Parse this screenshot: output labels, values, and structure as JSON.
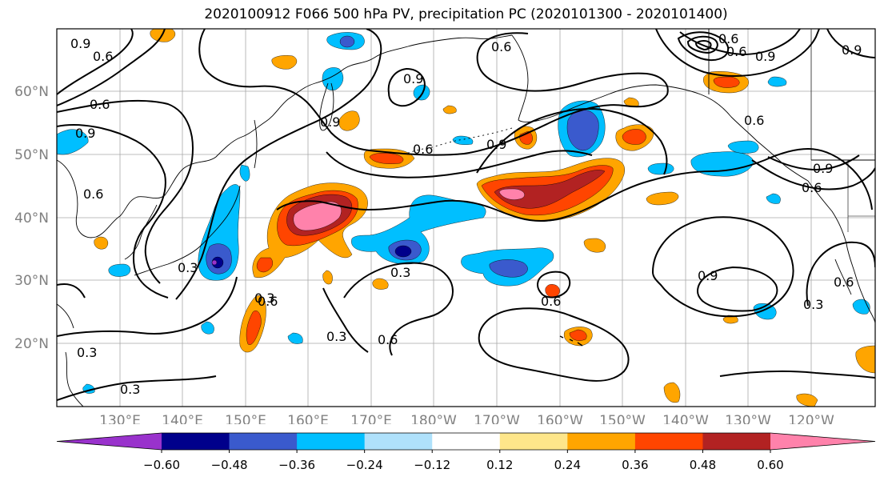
{
  "title": "2020100912 F066 500 hPa PV, precipitation PC (2020101300 - 2020101400)",
  "lat_labels": [
    "60°N",
    "50°N",
    "40°N",
    "30°N",
    "20°N"
  ],
  "lon_labels": [
    "130°E",
    "140°E",
    "150°E",
    "160°E",
    "170°E",
    "180°W",
    "170°W",
    "160°W",
    "150°W",
    "140°W",
    "130°W",
    "120°W"
  ],
  "colorbar": {
    "ticks": [
      "−0.60",
      "−0.48",
      "−0.36",
      "−0.24",
      "−0.12",
      "0.12",
      "0.24",
      "0.36",
      "0.48",
      "0.60"
    ],
    "colors": [
      "#9932cc",
      "#00008b",
      "#3a5acd",
      "#00bfff",
      "#afe1fb",
      "#ffffff",
      "#fee68a",
      "#ffa500",
      "#ff4500",
      "#b22222",
      "#ff82ab"
    ]
  },
  "contour_labels": [
    "0.9",
    "0.6",
    "0.6",
    "0.9",
    "0.6",
    "0.3",
    "0.6",
    "0.3",
    "0.3",
    "0.6",
    "0.3",
    "0.3",
    "0.9",
    "0.6",
    "0.9",
    "0.6",
    "0.9",
    "0.6",
    "0.9",
    "0.6",
    "0.3",
    "0.6",
    "0.3",
    "0.6",
    "0.9",
    "0.9",
    "0.6",
    "0.9",
    "0.6"
  ]
}
